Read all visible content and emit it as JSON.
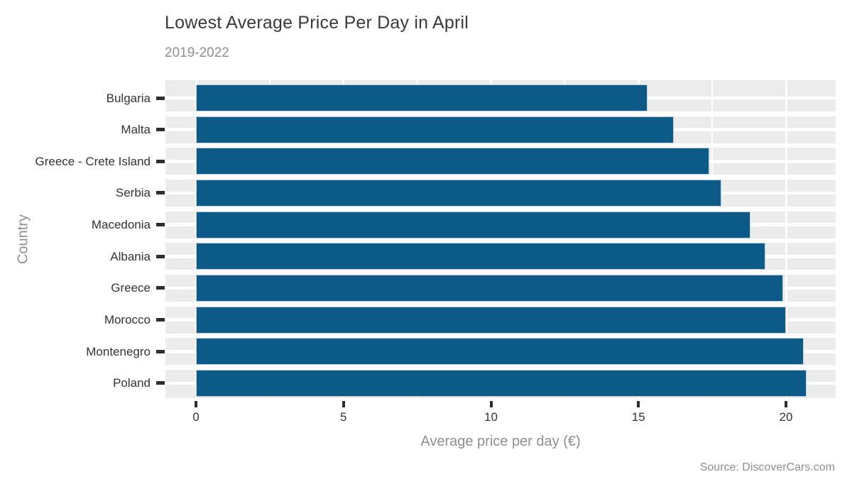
{
  "source": "Source: DiscoverCars.com",
  "chart_data": {
    "type": "bar",
    "orientation": "horizontal",
    "title": "Lowest Average Price Per Day in April",
    "subtitle": "2019-2022",
    "xlabel": "Average price per day (€)",
    "ylabel": "Country",
    "categories": [
      "Bulgaria",
      "Malta",
      "Greece - Crete Island",
      "Serbia",
      "Macedonia",
      "Albania",
      "Greece",
      "Morocco",
      "Montenegro",
      "Poland"
    ],
    "values": [
      15.3,
      16.2,
      17.4,
      17.8,
      18.8,
      19.3,
      19.9,
      20.0,
      20.6,
      20.7
    ],
    "xlim": [
      0,
      21.7
    ],
    "x_major_ticks": [
      0,
      5,
      10,
      15,
      20
    ],
    "x_minor_gridlines": [
      2.5,
      7.5,
      12.5,
      17.5
    ],
    "grid": true,
    "legend": false,
    "colors": {
      "bar_fill": "#0d5988",
      "bar_border": "#bccfdb",
      "panel_bg": "#ebebeb",
      "gridline": "#ffffff",
      "tick": "#2e2e2e",
      "title_text": "#3a3a3a",
      "muted_text": "#8f8f8f",
      "label_text": "#333333"
    }
  }
}
